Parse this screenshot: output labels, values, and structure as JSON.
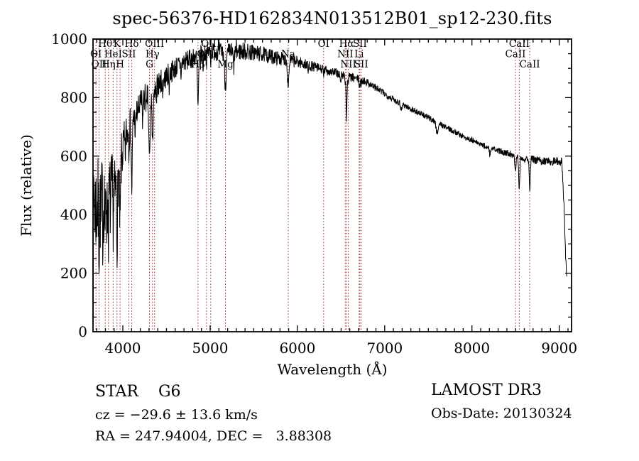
{
  "title": "spec-56376-HD162834N013512B01_sp12-230.fits",
  "annotations": {
    "star_class": "STAR    G6",
    "survey": "LAMOST DR3",
    "cz": "cz = −29.6 ± 13.6 km/s",
    "obs_date": "Obs-Date: 20130324",
    "radec": "RA = 247.94004, DEC =   3.88308"
  },
  "chart_data": {
    "type": "line",
    "title": "spec-56376-HD162834N013512B01_sp12-230.fits",
    "xlabel": "Wavelength (Å)",
    "ylabel": "Flux (relative)",
    "xlim": [
      3658,
      9141
    ],
    "ylim": [
      0,
      1000
    ],
    "x_ticks": [
      4000,
      5000,
      6000,
      7000,
      8000,
      9000
    ],
    "y_ticks": [
      0,
      200,
      400,
      600,
      800,
      1000
    ],
    "x_minor_step": 100,
    "y_minor_step": 50,
    "grid": false,
    "legend": "none",
    "colors": {
      "line": "#000000",
      "marker": "#993333",
      "axis": "#000000",
      "background": "#ffffff"
    },
    "spectral_lines": [
      {
        "label": "OI",
        "wavelength": 3692,
        "row": 2
      },
      {
        "label": "OII",
        "wavelength": 3727,
        "row": 3
      },
      {
        "label": "Hθ",
        "wavelength": 3798,
        "row": 1
      },
      {
        "label": "Hη",
        "wavelength": 3835,
        "row": 3
      },
      {
        "label": "HeI",
        "wavelength": 3889,
        "row": 2
      },
      {
        "label": "K",
        "wavelength": 3933,
        "row": 1
      },
      {
        "label": "H",
        "wavelength": 3968,
        "row": 3
      },
      {
        "label": "SII",
        "wavelength": 4069,
        "row": 2
      },
      {
        "label": "Hδ",
        "wavelength": 4102,
        "row": 1
      },
      {
        "label": "G",
        "wavelength": 4305,
        "row": 3
      },
      {
        "label": "Hγ",
        "wavelength": 4340,
        "row": 2
      },
      {
        "label": "OIII",
        "wavelength": 4363,
        "row": 1
      },
      {
        "label": "Hβ",
        "wavelength": 4861,
        "row": 3
      },
      {
        "label": "OIII",
        "wavelength": 4959,
        "row": 2
      },
      {
        "label": "OIII",
        "wavelength": 5007,
        "row": 1
      },
      {
        "label": "Mg",
        "wavelength": 5175,
        "row": 3
      },
      {
        "label": "Na",
        "wavelength": 5894,
        "row": 2
      },
      {
        "label": "OI",
        "wavelength": 6300,
        "row": 1
      },
      {
        "label": "NII",
        "wavelength": 6548,
        "row": 2
      },
      {
        "label": "Hα",
        "wavelength": 6563,
        "row": 1
      },
      {
        "label": "NII",
        "wavelength": 6583,
        "row": 3
      },
      {
        "label": "Li",
        "wavelength": 6707,
        "row": 2
      },
      {
        "label": "SII",
        "wavelength": 6716,
        "row": 1
      },
      {
        "label": "SII",
        "wavelength": 6731,
        "row": 3
      },
      {
        "label": "CaII",
        "wavelength": 8498,
        "row": 2
      },
      {
        "label": "CaII",
        "wavelength": 8542,
        "row": 1
      },
      {
        "label": "CaII",
        "wavelength": 8662,
        "row": 3
      }
    ],
    "spectrum": {
      "seed": 7,
      "step": 3.0,
      "wl_start": 3658,
      "wl_end": 9090,
      "continuum": [
        [
          3658,
          60
        ],
        [
          3662,
          300
        ],
        [
          3668,
          480
        ],
        [
          3680,
          430
        ],
        [
          3700,
          430
        ],
        [
          3730,
          440
        ],
        [
          3760,
          450
        ],
        [
          3800,
          465
        ],
        [
          3850,
          480
        ],
        [
          3900,
          505
        ],
        [
          3930,
          520
        ],
        [
          3960,
          545
        ],
        [
          4000,
          620
        ],
        [
          4040,
          680
        ],
        [
          4080,
          705
        ],
        [
          4120,
          725
        ],
        [
          4160,
          745
        ],
        [
          4200,
          775
        ],
        [
          4250,
          800
        ],
        [
          4300,
          820
        ],
        [
          4350,
          828
        ],
        [
          4400,
          845
        ],
        [
          4500,
          872
        ],
        [
          4600,
          902
        ],
        [
          4700,
          922
        ],
        [
          4800,
          935
        ],
        [
          4900,
          948
        ],
        [
          5000,
          958
        ],
        [
          5100,
          958
        ],
        [
          5200,
          954
        ],
        [
          5300,
          958
        ],
        [
          5400,
          958
        ],
        [
          5500,
          953
        ],
        [
          5600,
          948
        ],
        [
          5700,
          940
        ],
        [
          5800,
          934
        ],
        [
          5900,
          928
        ],
        [
          6000,
          922
        ],
        [
          6100,
          913
        ],
        [
          6200,
          904
        ],
        [
          6300,
          895
        ],
        [
          6400,
          888
        ],
        [
          6500,
          879
        ],
        [
          6600,
          870
        ],
        [
          6700,
          863
        ],
        [
          6800,
          853
        ],
        [
          6900,
          833
        ],
        [
          7000,
          813
        ],
        [
          7100,
          794
        ],
        [
          7200,
          778
        ],
        [
          7300,
          761
        ],
        [
          7400,
          747
        ],
        [
          7500,
          731
        ],
        [
          7600,
          716
        ],
        [
          7700,
          699
        ],
        [
          7800,
          684
        ],
        [
          7900,
          667
        ],
        [
          8000,
          654
        ],
        [
          8100,
          640
        ],
        [
          8200,
          628
        ],
        [
          8300,
          618
        ],
        [
          8400,
          611
        ],
        [
          8470,
          604
        ],
        [
          8530,
          596
        ],
        [
          8600,
          592
        ],
        [
          8700,
          588
        ],
        [
          8800,
          584
        ],
        [
          8900,
          582
        ],
        [
          9000,
          584
        ],
        [
          9030,
          578
        ],
        [
          9055,
          430
        ],
        [
          9075,
          240
        ],
        [
          9090,
          180
        ]
      ],
      "noise_amplitude": [
        [
          3658,
          170
        ],
        [
          3750,
          150
        ],
        [
          3850,
          125
        ],
        [
          3950,
          95
        ],
        [
          4050,
          60
        ],
        [
          4150,
          48
        ],
        [
          4300,
          42
        ],
        [
          4500,
          36
        ],
        [
          4700,
          32
        ],
        [
          5000,
          29
        ],
        [
          5300,
          30
        ],
        [
          5600,
          25
        ],
        [
          5900,
          20
        ],
        [
          6200,
          16
        ],
        [
          6500,
          14
        ],
        [
          6800,
          12
        ],
        [
          7200,
          10
        ],
        [
          7600,
          9
        ],
        [
          8000,
          9
        ],
        [
          8400,
          10
        ],
        [
          8700,
          12
        ],
        [
          9000,
          13
        ],
        [
          9090,
          14
        ]
      ],
      "absorption_lines": [
        [
          3727,
          120,
          5
        ],
        [
          3750,
          100,
          4
        ],
        [
          3771,
          90,
          4
        ],
        [
          3798,
          115,
          5
        ],
        [
          3820,
          80,
          4
        ],
        [
          3835,
          110,
          5
        ],
        [
          3860,
          70,
          4
        ],
        [
          3889,
          105,
          5
        ],
        [
          3910,
          60,
          3
        ],
        [
          3933,
          200,
          6
        ],
        [
          3968,
          190,
          6
        ],
        [
          4026,
          70,
          4
        ],
        [
          4069,
          60,
          4
        ],
        [
          4102,
          230,
          6
        ],
        [
          4144,
          60,
          4
        ],
        [
          4227,
          70,
          4
        ],
        [
          4271,
          60,
          4
        ],
        [
          4305,
          230,
          9
        ],
        [
          4340,
          200,
          6
        ],
        [
          4363,
          50,
          4
        ],
        [
          4383,
          75,
          4
        ],
        [
          4455,
          45,
          4
        ],
        [
          4531,
          40,
          4
        ],
        [
          4668,
          40,
          4
        ],
        [
          4861,
          175,
          7
        ],
        [
          4920,
          45,
          4
        ],
        [
          4959,
          25,
          4
        ],
        [
          5007,
          28,
          4
        ],
        [
          5175,
          110,
          10
        ],
        [
          5270,
          55,
          6
        ],
        [
          5894,
          85,
          8
        ],
        [
          6122,
          25,
          4
        ],
        [
          6300,
          25,
          4
        ],
        [
          6494,
          32,
          5
        ],
        [
          6548,
          22,
          3
        ],
        [
          6563,
          150,
          5
        ],
        [
          6583,
          22,
          3
        ],
        [
          6707,
          20,
          3
        ],
        [
          6716,
          22,
          3
        ],
        [
          6731,
          24,
          3
        ],
        [
          7190,
          22,
          7
        ],
        [
          7600,
          35,
          12
        ],
        [
          8205,
          22,
          6
        ],
        [
          8498,
          48,
          6
        ],
        [
          8542,
          108,
          6
        ],
        [
          8662,
          102,
          6
        ]
      ]
    }
  }
}
